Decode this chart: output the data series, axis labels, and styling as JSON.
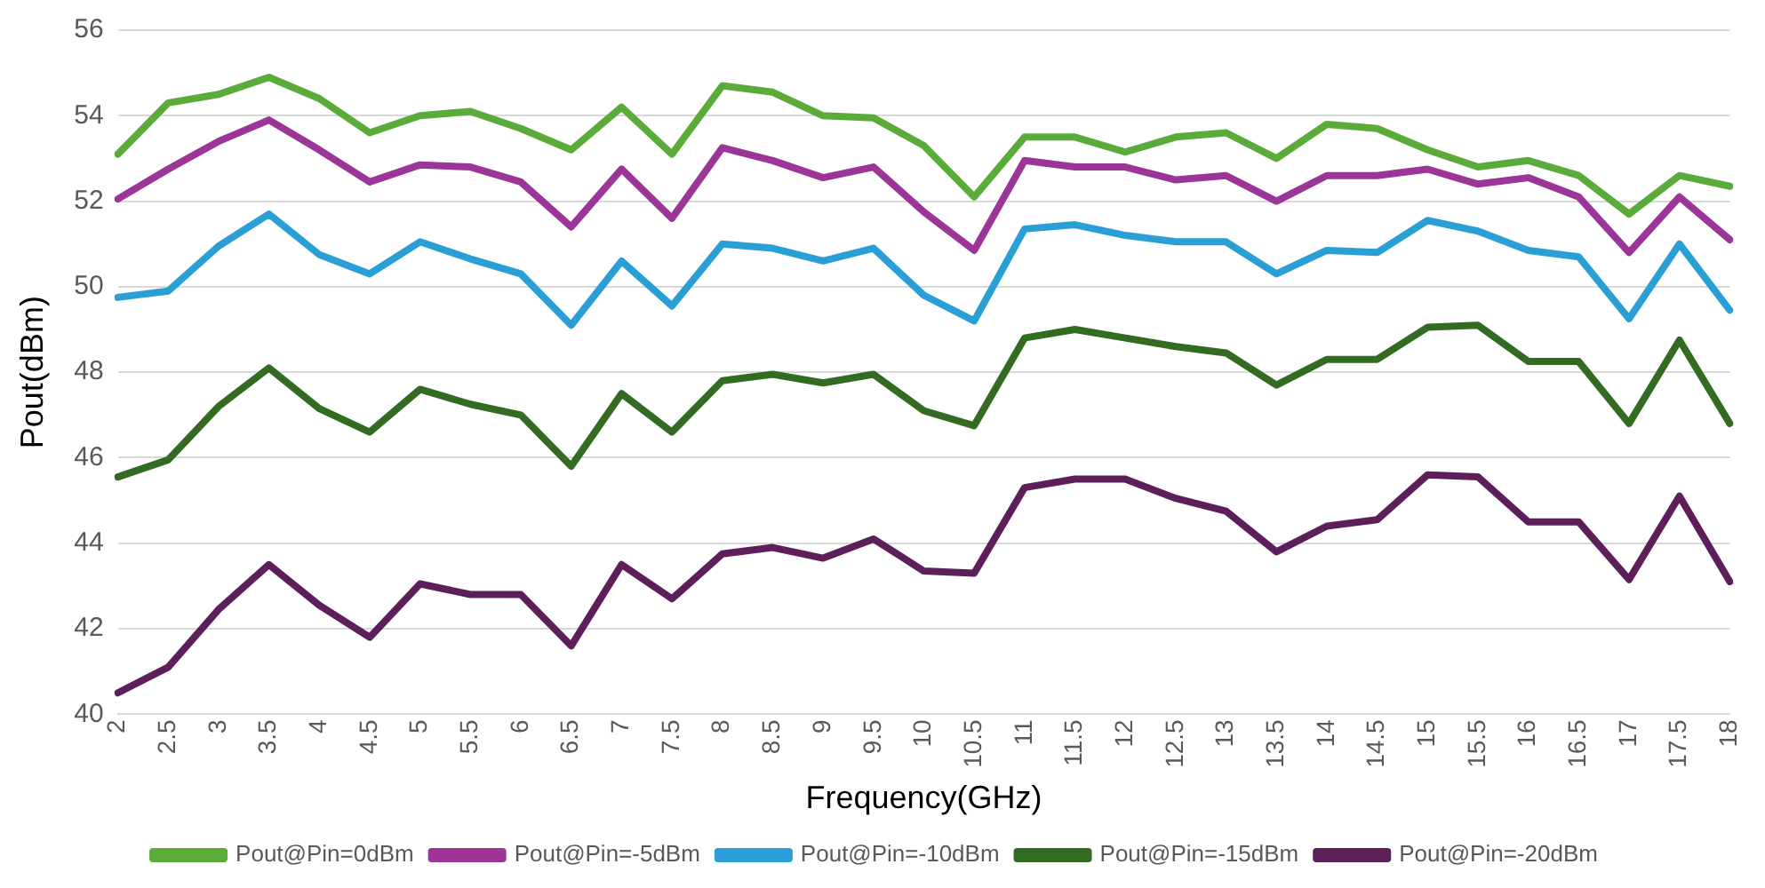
{
  "chart_data": {
    "type": "line",
    "xlabel": "Frequency(GHz)",
    "ylabel": "Pout(dBm)",
    "categories": [
      "2",
      "2.5",
      "3",
      "3.5",
      "4",
      "4.5",
      "5",
      "5.5",
      "6",
      "6.5",
      "7",
      "7.5",
      "8",
      "8.5",
      "9",
      "9.5",
      "10",
      "10.5",
      "11",
      "11.5",
      "12",
      "12.5",
      "13",
      "13.5",
      "14",
      "14.5",
      "15",
      "15.5",
      "16",
      "16.5",
      "17",
      "17.5",
      "18"
    ],
    "ylim": [
      40,
      56
    ],
    "yticks": [
      40,
      42,
      44,
      46,
      48,
      50,
      52,
      54,
      56
    ],
    "grid": "y",
    "legend": "bottom",
    "marker": "none",
    "line_style": "solid",
    "series": [
      {
        "name": "Pout@Pin=0dBm",
        "color": "#5aab3a",
        "values": [
          53.1,
          54.3,
          54.5,
          54.9,
          54.4,
          53.6,
          54.0,
          54.1,
          53.7,
          53.2,
          54.2,
          53.1,
          54.7,
          54.55,
          54.0,
          53.95,
          53.3,
          52.1,
          53.5,
          53.5,
          53.15,
          53.5,
          53.6,
          53.0,
          53.8,
          53.7,
          53.2,
          52.8,
          52.95,
          52.6,
          51.7,
          52.6,
          52.35
        ]
      },
      {
        "name": "Pout@Pin=-5dBm",
        "color": "#9b3597",
        "values": [
          52.05,
          52.75,
          53.4,
          53.9,
          53.2,
          52.45,
          52.85,
          52.8,
          52.45,
          51.4,
          52.75,
          51.6,
          53.25,
          52.95,
          52.55,
          52.8,
          51.75,
          50.85,
          52.95,
          52.8,
          52.8,
          52.5,
          52.6,
          52.0,
          52.6,
          52.6,
          52.75,
          52.4,
          52.55,
          52.1,
          50.8,
          52.1,
          51.1
        ]
      },
      {
        "name": "Pout@Pin=-10dBm",
        "color": "#2a9fd6",
        "values": [
          49.75,
          49.9,
          50.95,
          51.7,
          50.75,
          50.3,
          51.05,
          50.65,
          50.3,
          49.1,
          50.6,
          49.55,
          51.0,
          50.9,
          50.6,
          50.9,
          49.8,
          49.2,
          51.35,
          51.45,
          51.2,
          51.05,
          51.05,
          50.3,
          50.85,
          50.8,
          51.55,
          51.3,
          50.85,
          50.7,
          49.25,
          51.0,
          49.45
        ]
      },
      {
        "name": "Pout@Pin=-15dBm",
        "color": "#336b22",
        "values": [
          45.55,
          45.95,
          47.2,
          48.1,
          47.15,
          46.6,
          47.6,
          47.25,
          47.0,
          45.8,
          47.5,
          46.6,
          47.8,
          47.95,
          47.75,
          47.95,
          47.1,
          46.75,
          48.8,
          49.0,
          48.8,
          48.6,
          48.45,
          47.7,
          48.3,
          48.3,
          49.05,
          49.1,
          48.25,
          48.25,
          46.8,
          48.75,
          46.8
        ]
      },
      {
        "name": "Pout@Pin=-20dBm",
        "color": "#5c1f5a",
        "values": [
          40.5,
          41.1,
          42.45,
          43.5,
          42.55,
          41.8,
          43.05,
          42.8,
          42.8,
          41.6,
          43.5,
          42.7,
          43.75,
          43.9,
          43.65,
          44.1,
          43.35,
          43.3,
          45.3,
          45.5,
          45.5,
          45.05,
          44.75,
          43.8,
          44.4,
          44.55,
          45.6,
          45.55,
          44.5,
          44.5,
          43.15,
          45.1,
          43.1
        ]
      }
    ]
  }
}
